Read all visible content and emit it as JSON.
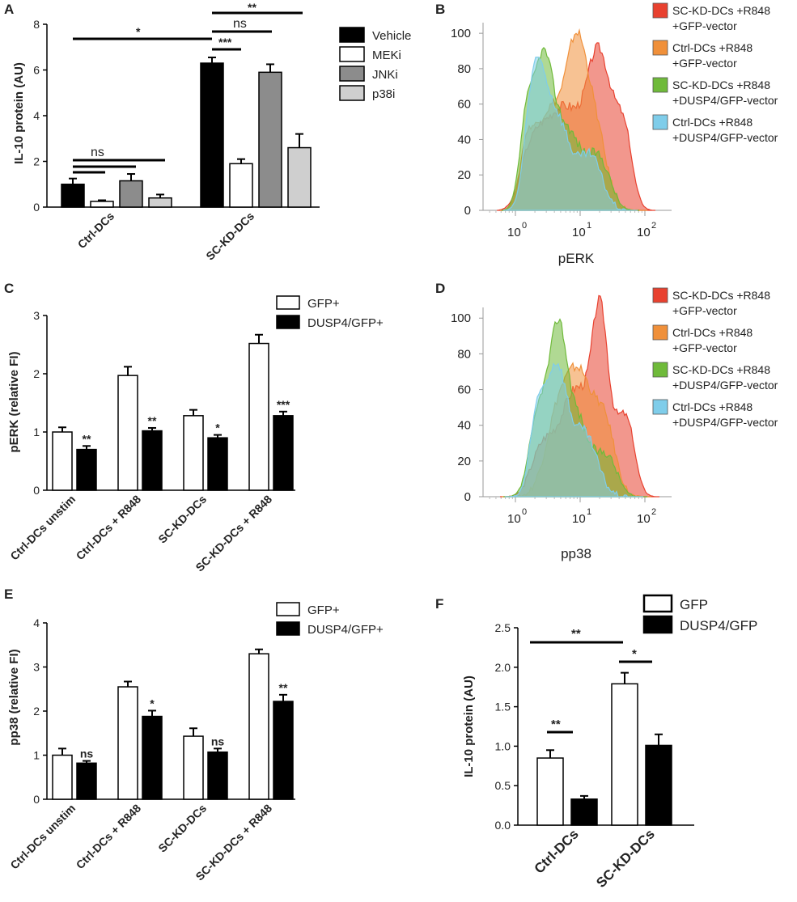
{
  "chart_data": [
    {
      "panel": "A",
      "type": "bar",
      "ylabel": "IL-10 protein (AU)",
      "ylim": [
        0,
        8
      ],
      "yticks": [
        0,
        2,
        4,
        6,
        8
      ],
      "groups": [
        "Ctrl-DCs",
        "SC-KD-DCs"
      ],
      "series": [
        {
          "name": "Vehicle",
          "color": "#000000",
          "values": [
            1.0,
            6.3
          ],
          "errors": [
            0.25,
            0.25
          ]
        },
        {
          "name": "MEKi",
          "color": "#ffffff",
          "values": [
            0.25,
            1.9
          ],
          "errors": [
            0.05,
            0.2
          ]
        },
        {
          "name": "JNKi",
          "color": "#8c8c8c",
          "values": [
            1.15,
            5.9
          ],
          "errors": [
            0.3,
            0.35
          ]
        },
        {
          "name": "p38i",
          "color": "#cfcfcf",
          "values": [
            0.4,
            2.6
          ],
          "errors": [
            0.15,
            0.6
          ]
        }
      ],
      "annotations": [
        "*",
        "**",
        "ns",
        "***",
        "ns"
      ]
    },
    {
      "panel": "B",
      "type": "area",
      "xlabel": "pERK",
      "xticks": [
        "10",
        "10",
        "10"
      ],
      "xtick_exps": [
        "0",
        "1",
        "2"
      ],
      "yticks": [
        "0",
        "20",
        "40",
        "60",
        "80",
        "100"
      ],
      "legend": [
        {
          "line1": "SC-KD-DCs +R848",
          "line2": "+GFP-vector",
          "color": "#e8412f"
        },
        {
          "line1": "Ctrl-DCs +R848",
          "line2": "+GFP-vector",
          "color": "#f0903a"
        },
        {
          "line1": "SC-KD-DCs +R848",
          "line2": "+DUSP4/GFP-vector",
          "color": "#6fba3a"
        },
        {
          "line1": "Ctrl-DCs +R848",
          "line2": "+DUSP4/GFP-vector",
          "color": "#7fcdea"
        }
      ]
    },
    {
      "panel": "C",
      "type": "bar",
      "ylabel": "pERK (relative FI)",
      "ylim": [
        0,
        3
      ],
      "yticks": [
        0,
        1,
        2,
        3
      ],
      "categories": [
        "Ctrl-DCs unstim",
        "Ctrl-DCs + R848",
        "SC-KD-DCs",
        "SC-KD-DCs + R848"
      ],
      "series": [
        {
          "name": "GFP+",
          "color": "#ffffff",
          "values": [
            1.0,
            1.97,
            1.28,
            2.52
          ],
          "errors": [
            0.08,
            0.15,
            0.1,
            0.15
          ]
        },
        {
          "name": "DUSP4/GFP+",
          "color": "#000000",
          "values": [
            0.7,
            1.02,
            0.9,
            1.28
          ],
          "errors": [
            0.06,
            0.05,
            0.05,
            0.07
          ]
        }
      ],
      "annotations": [
        "**",
        "**",
        "*",
        "***"
      ]
    },
    {
      "panel": "D",
      "type": "area",
      "xlabel": "pp38",
      "xticks": [
        "10",
        "10",
        "10"
      ],
      "xtick_exps": [
        "0",
        "1",
        "2"
      ],
      "yticks": [
        "0",
        "20",
        "40",
        "60",
        "80",
        "100"
      ],
      "legend": [
        {
          "line1": "SC-KD-DCs +R848",
          "line2": "+GFP-vector",
          "color": "#e8412f"
        },
        {
          "line1": "Ctrl-DCs +R848",
          "line2": "+GFP-vector",
          "color": "#f0903a"
        },
        {
          "line1": "SC-KD-DCs +R848",
          "line2": "+DUSP4/GFP-vector",
          "color": "#6fba3a"
        },
        {
          "line1": "Ctrl-DCs +R848",
          "line2": "+DUSP4/GFP-vector",
          "color": "#7fcdea"
        }
      ]
    },
    {
      "panel": "E",
      "type": "bar",
      "ylabel": "pp38 (relative FI)",
      "ylim": [
        0,
        4
      ],
      "yticks": [
        0,
        1,
        2,
        3,
        4
      ],
      "categories": [
        "Ctrl-DCs unstim",
        "Ctrl-DCs + R848",
        "SC-KD-DCs",
        "SC-KD-DCs + R848"
      ],
      "series": [
        {
          "name": "GFP+",
          "color": "#ffffff",
          "values": [
            1.0,
            2.55,
            1.43,
            3.3
          ],
          "errors": [
            0.15,
            0.12,
            0.18,
            0.1
          ]
        },
        {
          "name": "DUSP4/GFP+",
          "color": "#000000",
          "values": [
            0.82,
            1.88,
            1.07,
            2.22
          ],
          "errors": [
            0.05,
            0.13,
            0.08,
            0.15
          ]
        }
      ],
      "annotations": [
        "ns",
        "*",
        "ns",
        "**"
      ]
    },
    {
      "panel": "F",
      "type": "bar",
      "ylabel": "IL-10 protein (AU)",
      "ylim": [
        0,
        2.5
      ],
      "yticks": [
        "0.0",
        "0.5",
        "1.0",
        "1.5",
        "2.0",
        "2.5"
      ],
      "categories": [
        "Ctrl-DCs",
        "SC-KD-DCs"
      ],
      "series": [
        {
          "name": "GFP",
          "color": "#ffffff",
          "values": [
            0.85,
            1.79
          ],
          "errors": [
            0.1,
            0.14
          ]
        },
        {
          "name": "DUSP4/GFP",
          "color": "#000000",
          "values": [
            0.33,
            1.01
          ],
          "errors": [
            0.04,
            0.14
          ]
        }
      ],
      "annotations": [
        "**",
        "**",
        "*"
      ]
    }
  ],
  "panel_letters": [
    "A",
    "B",
    "C",
    "D",
    "E",
    "F"
  ]
}
